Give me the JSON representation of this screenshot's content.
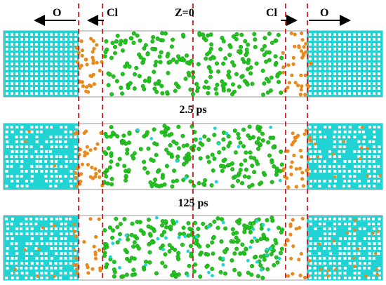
{
  "labels": {
    "left_outer": "O",
    "left_inner": "Cl",
    "center": "Z=0",
    "right_inner": "Cl",
    "right_outer": "O"
  },
  "panels": [
    {
      "time_label": "",
      "name": "panel-initial"
    },
    {
      "time_label": "2.5 ps",
      "name": "panel-2-5ps"
    },
    {
      "time_label": "125 ps",
      "name": "panel-125ps"
    }
  ],
  "colors": {
    "oxide": "#22d3d3",
    "oxide_dark": "#0fb3b8",
    "chlorine": "#e8891c",
    "water_green": "#22c21f",
    "dashed_line": "#e0141b",
    "arrow": "#000000"
  }
}
